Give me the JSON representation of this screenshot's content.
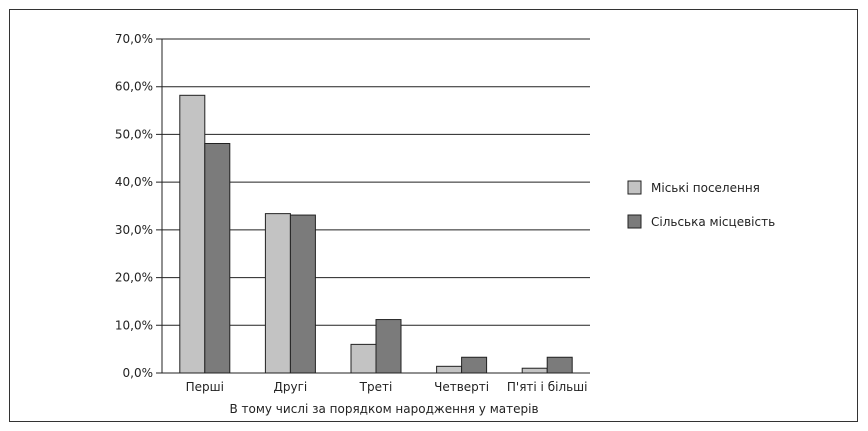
{
  "chart_data": {
    "type": "bar",
    "categories": [
      "Перші",
      "Другі",
      "Треті",
      "Четверті",
      "П'яті і більші"
    ],
    "series": [
      {
        "name": "Міські поселення",
        "values": [
          58.2,
          33.4,
          6.0,
          1.4,
          1.0
        ],
        "color": "#c3c3c3"
      },
      {
        "name": "Сільська місцевість",
        "values": [
          48.1,
          33.1,
          11.2,
          3.3,
          3.3
        ],
        "color": "#7b7b7b"
      }
    ],
    "xlabel": "В тому числі за порядком народження у матерів",
    "ylabel": "",
    "ylim": [
      0,
      70
    ],
    "yticks": [
      "0,0%",
      "10,0%",
      "20,0%",
      "30,0%",
      "40,0%",
      "50,0%",
      "60,0%",
      "70,0%"
    ],
    "grid": true,
    "legend_position": "right"
  }
}
